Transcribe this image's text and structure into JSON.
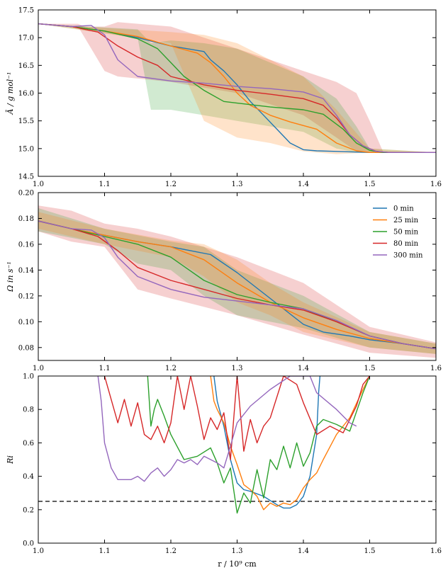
{
  "colors": {
    "s0": "#1f77b4",
    "s25": "#ff7f0e",
    "s50": "#2ca02c",
    "s80": "#d62728",
    "s300": "#9467bd"
  },
  "chart_data": [
    {
      "type": "line",
      "ylabel": "Ā / g mol⁻¹",
      "xlim": [
        1.0,
        1.6
      ],
      "ylim": [
        14.5,
        17.5
      ],
      "x_ticks": [
        "1.0",
        "1.1",
        "1.2",
        "1.3",
        "1.4",
        "1.5",
        "1.6"
      ],
      "y_ticks": [
        "14.5",
        "15.0",
        "15.5",
        "16.0",
        "16.5",
        "17.0",
        "17.5"
      ],
      "series": [
        {
          "name": "0 min",
          "color_key": "s0",
          "x": [
            1.0,
            1.05,
            1.1,
            1.15,
            1.2,
            1.25,
            1.26,
            1.28,
            1.3,
            1.32,
            1.34,
            1.36,
            1.38,
            1.4,
            1.42,
            1.45,
            1.5,
            1.6
          ],
          "y": [
            17.25,
            17.2,
            17.12,
            17.0,
            16.85,
            16.75,
            16.6,
            16.4,
            16.15,
            15.85,
            15.6,
            15.35,
            15.1,
            14.98,
            14.96,
            14.95,
            14.93,
            14.93
          ]
        },
        {
          "name": "25 min",
          "color_key": "s25",
          "x": [
            1.0,
            1.05,
            1.1,
            1.15,
            1.2,
            1.24,
            1.26,
            1.28,
            1.3,
            1.32,
            1.35,
            1.38,
            1.42,
            1.45,
            1.48,
            1.5,
            1.6
          ],
          "y": [
            17.25,
            17.2,
            17.12,
            17.02,
            16.85,
            16.72,
            16.55,
            16.3,
            16.0,
            15.78,
            15.6,
            15.48,
            15.35,
            15.1,
            14.96,
            14.93,
            14.93
          ]
        },
        {
          "name": "50 min",
          "color_key": "s50",
          "x": [
            1.0,
            1.05,
            1.1,
            1.15,
            1.18,
            1.2,
            1.22,
            1.25,
            1.28,
            1.3,
            1.35,
            1.4,
            1.43,
            1.46,
            1.48,
            1.5,
            1.52,
            1.6
          ],
          "y": [
            17.25,
            17.2,
            17.12,
            16.98,
            16.8,
            16.55,
            16.3,
            16.05,
            15.85,
            15.82,
            15.75,
            15.7,
            15.62,
            15.35,
            15.1,
            14.97,
            14.93,
            14.93
          ]
        },
        {
          "name": "80 min",
          "color_key": "s80",
          "x": [
            1.0,
            1.05,
            1.09,
            1.12,
            1.15,
            1.18,
            1.2,
            1.25,
            1.3,
            1.35,
            1.4,
            1.43,
            1.45,
            1.47,
            1.49,
            1.51,
            1.53,
            1.6
          ],
          "y": [
            17.25,
            17.2,
            17.1,
            16.85,
            16.65,
            16.5,
            16.3,
            16.15,
            16.05,
            15.98,
            15.9,
            15.78,
            15.55,
            15.25,
            15.05,
            14.95,
            14.93,
            14.93
          ]
        },
        {
          "name": "300 min",
          "color_key": "s300",
          "x": [
            1.0,
            1.05,
            1.08,
            1.1,
            1.12,
            1.15,
            1.2,
            1.25,
            1.3,
            1.35,
            1.4,
            1.43,
            1.45,
            1.47,
            1.49,
            1.51,
            1.53,
            1.6
          ],
          "y": [
            17.25,
            17.2,
            17.22,
            17.05,
            16.6,
            16.3,
            16.22,
            16.18,
            16.12,
            16.08,
            16.02,
            15.9,
            15.6,
            15.25,
            15.05,
            14.95,
            14.93,
            14.93
          ]
        }
      ],
      "bands": [
        {
          "color_key": "s80",
          "x": [
            1.0,
            1.06,
            1.07,
            1.1,
            1.12,
            1.2,
            1.3,
            1.4,
            1.45,
            1.48,
            1.5,
            1.52,
            1.6
          ],
          "lo": [
            17.25,
            17.2,
            17.0,
            16.4,
            16.3,
            16.2,
            16.0,
            15.6,
            15.2,
            14.95,
            14.93,
            14.93,
            14.93
          ],
          "hi": [
            17.25,
            17.25,
            17.2,
            17.2,
            17.28,
            17.2,
            16.8,
            16.4,
            16.2,
            16.0,
            15.5,
            14.95,
            14.93
          ]
        },
        {
          "color_key": "s50",
          "x": [
            1.0,
            1.15,
            1.17,
            1.2,
            1.25,
            1.3,
            1.4,
            1.45,
            1.48,
            1.5,
            1.6
          ],
          "lo": [
            17.25,
            17.0,
            15.7,
            15.7,
            15.6,
            15.5,
            15.3,
            15.0,
            14.93,
            14.93,
            14.93
          ],
          "hi": [
            17.25,
            17.15,
            16.9,
            16.95,
            16.9,
            16.8,
            16.3,
            15.9,
            15.4,
            15.0,
            14.93
          ]
        },
        {
          "color_key": "s25",
          "x": [
            1.0,
            1.2,
            1.25,
            1.3,
            1.35,
            1.4,
            1.45,
            1.5,
            1.6
          ],
          "lo": [
            17.25,
            16.9,
            15.5,
            15.2,
            15.1,
            14.95,
            14.9,
            14.93,
            14.93
          ],
          "hi": [
            17.25,
            17.1,
            17.05,
            16.9,
            16.6,
            16.3,
            15.7,
            15.0,
            14.93
          ]
        }
      ]
    },
    {
      "type": "line",
      "ylabel": "Ω in s⁻¹",
      "xlim": [
        1.0,
        1.6
      ],
      "ylim": [
        0.07,
        0.2
      ],
      "x_ticks": [
        "1.0",
        "1.1",
        "1.2",
        "1.3",
        "1.4",
        "1.5",
        "1.6"
      ],
      "y_ticks": [
        "0.08",
        "0.10",
        "0.12",
        "0.14",
        "0.16",
        "0.18",
        "0.20"
      ],
      "legend": {
        "placement": "top-right",
        "entries": [
          "0 min",
          "25 min",
          "50 min",
          "80 min",
          "300 min"
        ]
      },
      "series": [
        {
          "name": "0 min",
          "color_key": "s0",
          "x": [
            1.0,
            1.05,
            1.1,
            1.15,
            1.2,
            1.26,
            1.3,
            1.35,
            1.4,
            1.43,
            1.47,
            1.5,
            1.55,
            1.6
          ],
          "y": [
            0.178,
            0.172,
            0.167,
            0.162,
            0.158,
            0.152,
            0.138,
            0.118,
            0.098,
            0.092,
            0.089,
            0.086,
            0.083,
            0.079
          ]
        },
        {
          "name": "25 min",
          "color_key": "s25",
          "x": [
            1.0,
            1.05,
            1.1,
            1.15,
            1.2,
            1.25,
            1.3,
            1.35,
            1.4,
            1.45,
            1.5,
            1.55,
            1.6
          ],
          "y": [
            0.178,
            0.172,
            0.167,
            0.162,
            0.158,
            0.148,
            0.13,
            0.115,
            0.103,
            0.094,
            0.087,
            0.083,
            0.079
          ]
        },
        {
          "name": "50 min",
          "color_key": "s50",
          "x": [
            1.0,
            1.05,
            1.1,
            1.15,
            1.2,
            1.25,
            1.3,
            1.35,
            1.4,
            1.45,
            1.5,
            1.55,
            1.6
          ],
          "y": [
            0.178,
            0.172,
            0.166,
            0.16,
            0.15,
            0.132,
            0.121,
            0.115,
            0.11,
            0.1,
            0.089,
            0.083,
            0.079
          ]
        },
        {
          "name": "80 min",
          "color_key": "s80",
          "x": [
            1.0,
            1.05,
            1.09,
            1.12,
            1.15,
            1.2,
            1.25,
            1.3,
            1.35,
            1.4,
            1.45,
            1.5,
            1.55,
            1.6
          ],
          "y": [
            0.178,
            0.172,
            0.166,
            0.155,
            0.142,
            0.132,
            0.125,
            0.118,
            0.113,
            0.109,
            0.1,
            0.089,
            0.083,
            0.079
          ]
        },
        {
          "name": "300 min",
          "color_key": "s300",
          "x": [
            1.0,
            1.05,
            1.08,
            1.1,
            1.12,
            1.15,
            1.2,
            1.25,
            1.3,
            1.35,
            1.4,
            1.45,
            1.5,
            1.55,
            1.6
          ],
          "y": [
            0.178,
            0.172,
            0.171,
            0.165,
            0.15,
            0.135,
            0.125,
            0.119,
            0.116,
            0.113,
            0.11,
            0.101,
            0.089,
            0.083,
            0.079
          ]
        }
      ],
      "bands": [
        {
          "color_key": "s80",
          "x": [
            1.0,
            1.05,
            1.1,
            1.15,
            1.2,
            1.3,
            1.4,
            1.5,
            1.6
          ],
          "lo": [
            0.17,
            0.162,
            0.158,
            0.125,
            0.118,
            0.105,
            0.09,
            0.076,
            0.072
          ],
          "hi": [
            0.19,
            0.186,
            0.176,
            0.172,
            0.166,
            0.15,
            0.13,
            0.096,
            0.084
          ]
        },
        {
          "color_key": "s50",
          "x": [
            1.0,
            1.1,
            1.15,
            1.2,
            1.25,
            1.3,
            1.4,
            1.5,
            1.6
          ],
          "lo": [
            0.17,
            0.16,
            0.145,
            0.14,
            0.12,
            0.105,
            0.095,
            0.08,
            0.075
          ],
          "hi": [
            0.188,
            0.172,
            0.167,
            0.162,
            0.158,
            0.14,
            0.12,
            0.092,
            0.083
          ]
        },
        {
          "color_key": "s25",
          "x": [
            1.0,
            1.1,
            1.2,
            1.25,
            1.3,
            1.35,
            1.4,
            1.5,
            1.6
          ],
          "lo": [
            0.172,
            0.16,
            0.15,
            0.135,
            0.115,
            0.105,
            0.092,
            0.08,
            0.075
          ],
          "hi": [
            0.185,
            0.172,
            0.163,
            0.16,
            0.148,
            0.13,
            0.115,
            0.092,
            0.083
          ]
        }
      ]
    },
    {
      "type": "line",
      "ylabel": "Ri",
      "xlabel": "r / 10⁹ cm",
      "xlim": [
        1.0,
        1.6
      ],
      "ylim": [
        0.0,
        1.0
      ],
      "x_ticks": [
        "1.0",
        "1.1",
        "1.2",
        "1.3",
        "1.4",
        "1.5",
        "1.6"
      ],
      "y_ticks": [
        "0.0",
        "0.2",
        "0.4",
        "0.6",
        "0.8",
        "1.0"
      ],
      "reference_line": {
        "y": 0.25,
        "style": "dashed"
      },
      "series": [
        {
          "name": "0 min",
          "color_key": "s0",
          "x": [
            1.265,
            1.27,
            1.28,
            1.29,
            1.3,
            1.31,
            1.32,
            1.34,
            1.36,
            1.37,
            1.38,
            1.39,
            1.4,
            1.41,
            1.42,
            1.423,
            1.425
          ],
          "y": [
            1.0,
            0.85,
            0.7,
            0.5,
            0.36,
            0.32,
            0.31,
            0.28,
            0.23,
            0.21,
            0.21,
            0.23,
            0.28,
            0.4,
            0.65,
            0.9,
            1.0
          ]
        },
        {
          "name": "25 min",
          "color_key": "s25",
          "x": [
            1.26,
            1.265,
            1.27,
            1.28,
            1.29,
            1.3,
            1.31,
            1.32,
            1.33,
            1.34,
            1.35,
            1.36,
            1.37,
            1.38,
            1.39,
            1.4,
            1.41,
            1.42,
            1.43,
            1.45,
            1.47,
            1.49,
            1.5
          ],
          "y": [
            1.0,
            0.85,
            0.8,
            0.72,
            0.58,
            0.47,
            0.35,
            0.32,
            0.28,
            0.2,
            0.24,
            0.22,
            0.24,
            0.23,
            0.26,
            0.33,
            0.38,
            0.42,
            0.5,
            0.65,
            0.75,
            0.92,
            1.0
          ]
        },
        {
          "name": "50 min",
          "color_key": "s50",
          "x": [
            1.165,
            1.17,
            1.175,
            1.18,
            1.19,
            1.2,
            1.22,
            1.24,
            1.26,
            1.27,
            1.28,
            1.29,
            1.3,
            1.31,
            1.32,
            1.33,
            1.34,
            1.35,
            1.36,
            1.37,
            1.38,
            1.39,
            1.4,
            1.41,
            1.42,
            1.43,
            1.45,
            1.47,
            1.49,
            1.5
          ],
          "y": [
            1.0,
            0.7,
            0.8,
            0.86,
            0.76,
            0.65,
            0.5,
            0.52,
            0.57,
            0.48,
            0.36,
            0.45,
            0.18,
            0.3,
            0.24,
            0.44,
            0.27,
            0.5,
            0.44,
            0.58,
            0.45,
            0.6,
            0.46,
            0.54,
            0.7,
            0.74,
            0.71,
            0.67,
            0.9,
            1.0
          ]
        },
        {
          "name": "80 min",
          "color_key": "s80",
          "x": [
            1.1,
            1.12,
            1.13,
            1.14,
            1.15,
            1.16,
            1.17,
            1.18,
            1.19,
            1.2,
            1.21,
            1.22,
            1.23,
            1.24,
            1.25,
            1.26,
            1.27,
            1.28,
            1.29,
            1.3,
            1.31,
            1.32,
            1.33,
            1.34,
            1.35,
            1.37,
            1.39,
            1.4,
            1.42,
            1.44,
            1.46,
            1.48,
            1.49,
            1.5
          ],
          "y": [
            1.0,
            0.72,
            0.86,
            0.7,
            0.84,
            0.65,
            0.62,
            0.7,
            0.6,
            0.72,
            1.0,
            0.8,
            1.0,
            0.82,
            0.62,
            0.75,
            0.68,
            0.78,
            0.5,
            1.0,
            0.55,
            0.74,
            0.6,
            0.7,
            0.75,
            1.0,
            0.95,
            0.84,
            0.65,
            0.7,
            0.66,
            0.82,
            0.95,
            1.0
          ]
        },
        {
          "name": "300 min",
          "color_key": "s300",
          "x": [
            1.09,
            1.095,
            1.1,
            1.11,
            1.12,
            1.14,
            1.15,
            1.16,
            1.17,
            1.18,
            1.19,
            1.2,
            1.21,
            1.22,
            1.23,
            1.24,
            1.25,
            1.26,
            1.27,
            1.28,
            1.29,
            1.3,
            1.32,
            1.35,
            1.38,
            1.4,
            1.41,
            1.42,
            1.45,
            1.47,
            1.48
          ],
          "y": [
            1.0,
            0.85,
            0.6,
            0.45,
            0.38,
            0.38,
            0.4,
            0.37,
            0.42,
            0.45,
            0.4,
            0.44,
            0.5,
            0.48,
            0.5,
            0.47,
            0.52,
            0.5,
            0.48,
            0.45,
            0.58,
            0.72,
            0.82,
            0.92,
            1.0,
            1.0,
            1.0,
            0.9,
            0.8,
            0.72,
            0.7
          ]
        }
      ]
    }
  ]
}
